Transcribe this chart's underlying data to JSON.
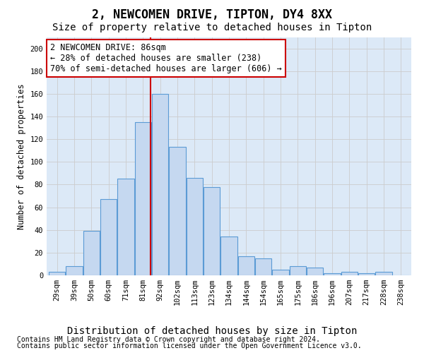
{
  "title": "2, NEWCOMEN DRIVE, TIPTON, DY4 8XX",
  "subtitle": "Size of property relative to detached houses in Tipton",
  "xlabel": "Distribution of detached houses by size in Tipton",
  "ylabel": "Number of detached properties",
  "footnote1": "Contains HM Land Registry data © Crown copyright and database right 2024.",
  "footnote2": "Contains public sector information licensed under the Open Government Licence v3.0.",
  "annotation_line1": "2 NEWCOMEN DRIVE: 86sqm",
  "annotation_line2": "← 28% of detached houses are smaller (238)",
  "annotation_line3": "70% of semi-detached houses are larger (606) →",
  "bar_categories": [
    "29sqm",
    "39sqm",
    "50sqm",
    "60sqm",
    "71sqm",
    "81sqm",
    "92sqm",
    "102sqm",
    "113sqm",
    "123sqm",
    "134sqm",
    "144sqm",
    "154sqm",
    "165sqm",
    "175sqm",
    "186sqm",
    "196sqm",
    "207sqm",
    "217sqm",
    "228sqm",
    "238sqm"
  ],
  "bar_values": [
    3,
    8,
    39,
    67,
    85,
    135,
    160,
    113,
    86,
    78,
    34,
    17,
    15,
    5,
    8,
    7,
    2,
    3,
    2,
    3,
    0
  ],
  "bar_color": "#c5d8f0",
  "bar_edge_color": "#5b9bd5",
  "vline_color": "#cc0000",
  "vline_pos": 5.45,
  "ylim": [
    0,
    210
  ],
  "yticks": [
    0,
    20,
    40,
    60,
    80,
    100,
    120,
    140,
    160,
    180,
    200
  ],
  "grid_color": "#cccccc",
  "plot_bg_color": "#dce9f7",
  "annotation_box_color": "#ffffff",
  "annotation_box_edge": "#cc0000",
  "title_fontsize": 12,
  "subtitle_fontsize": 10,
  "xlabel_fontsize": 10,
  "ylabel_fontsize": 8.5,
  "tick_fontsize": 7.5,
  "annot_fontsize": 8.5,
  "footnote_fontsize": 7
}
